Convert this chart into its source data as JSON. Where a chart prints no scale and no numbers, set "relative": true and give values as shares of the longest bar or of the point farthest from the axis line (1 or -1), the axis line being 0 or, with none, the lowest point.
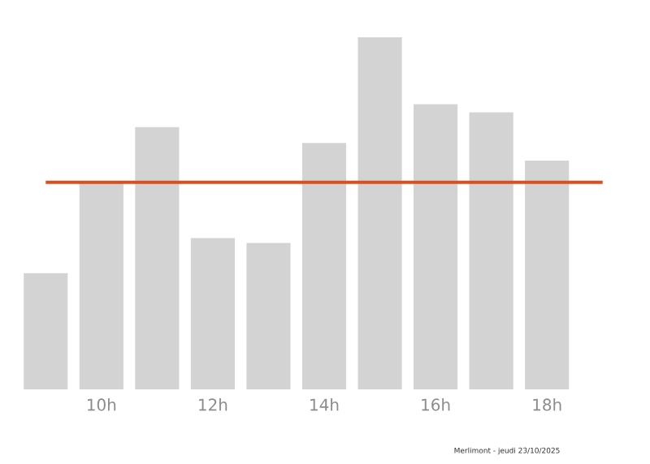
{
  "chart_data": {
    "type": "bar",
    "relative": true,
    "color": "#d3d3d3",
    "categories": [
      null,
      "10h",
      null,
      "12h",
      null,
      "14h",
      null,
      "16h",
      null,
      "18h"
    ],
    "values": [
      0.33,
      0.59,
      0.745,
      0.43,
      0.416,
      0.7,
      1,
      0.81,
      0.787,
      0.65
    ],
    "ref_lines": [
      {
        "axis": "y",
        "value": 0.588,
        "color": "#d9501e"
      }
    ],
    "annotations": [
      "Merlimont - jeudi 23/10/2025"
    ]
  }
}
